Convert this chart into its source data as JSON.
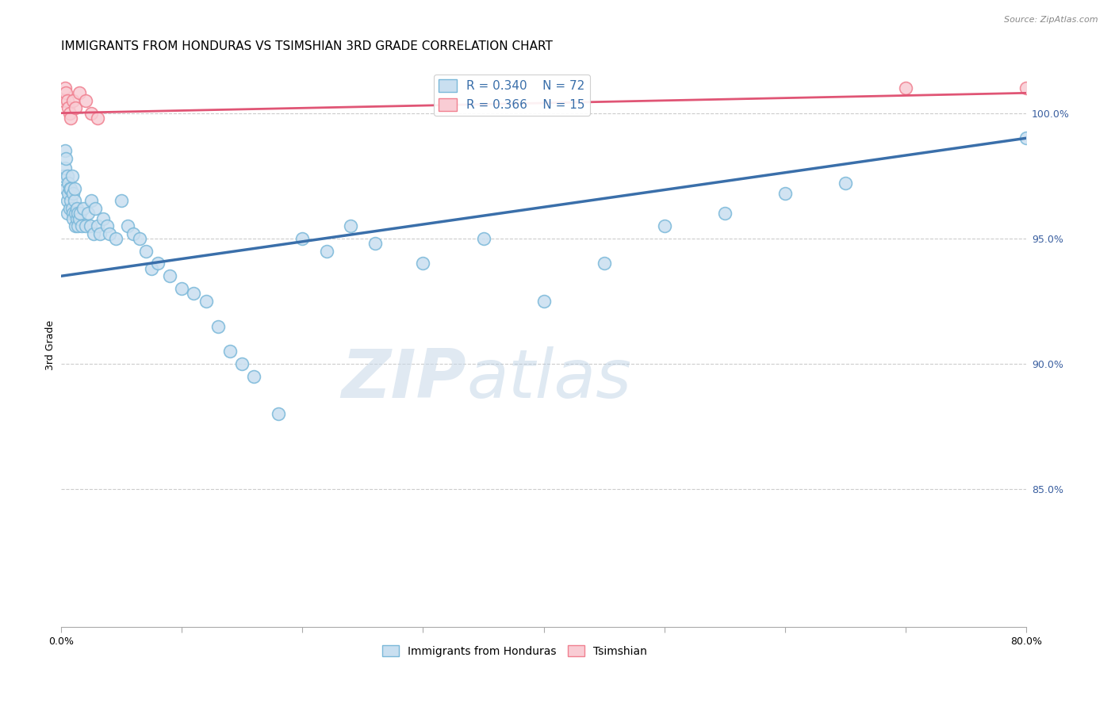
{
  "title": "IMMIGRANTS FROM HONDURAS VS TSIMSHIAN 3RD GRADE CORRELATION CHART",
  "source": "Source: ZipAtlas.com",
  "ylabel": "3rd Grade",
  "xlim": [
    0.0,
    80.0
  ],
  "ylim": [
    79.5,
    102.0
  ],
  "blue_R": 0.34,
  "blue_N": 72,
  "pink_R": 0.366,
  "pink_N": 15,
  "blue_color": "#7ab8d9",
  "blue_fill": "#c9dff0",
  "pink_color": "#f08090",
  "pink_fill": "#f9ccd4",
  "blue_line_color": "#3a6faa",
  "pink_line_color": "#e05575",
  "legend_label_blue": "Immigrants from Honduras",
  "legend_label_pink": "Tsimshian",
  "blue_scatter_x": [
    0.2,
    0.3,
    0.3,
    0.4,
    0.4,
    0.5,
    0.5,
    0.5,
    0.6,
    0.6,
    0.7,
    0.7,
    0.8,
    0.8,
    0.9,
    0.9,
    1.0,
    1.0,
    1.0,
    1.1,
    1.1,
    1.2,
    1.2,
    1.3,
    1.3,
    1.4,
    1.4,
    1.5,
    1.6,
    1.7,
    1.8,
    2.0,
    2.2,
    2.4,
    2.5,
    2.7,
    2.8,
    3.0,
    3.2,
    3.5,
    3.8,
    4.0,
    4.5,
    5.0,
    5.5,
    6.0,
    6.5,
    7.0,
    7.5,
    8.0,
    9.0,
    10.0,
    11.0,
    12.0,
    13.0,
    14.0,
    15.0,
    16.0,
    18.0,
    20.0,
    22.0,
    24.0,
    26.0,
    30.0,
    35.0,
    40.0,
    45.0,
    50.0,
    55.0,
    60.0,
    65.0,
    80.0
  ],
  "blue_scatter_y": [
    97.5,
    97.8,
    98.5,
    98.2,
    97.0,
    96.5,
    97.5,
    96.0,
    97.2,
    96.8,
    97.0,
    96.2,
    96.5,
    97.0,
    96.2,
    97.5,
    96.0,
    96.8,
    95.8,
    96.5,
    97.0,
    96.0,
    95.5,
    96.2,
    95.8,
    96.0,
    95.5,
    95.8,
    96.0,
    95.5,
    96.2,
    95.5,
    96.0,
    95.5,
    96.5,
    95.2,
    96.2,
    95.5,
    95.2,
    95.8,
    95.5,
    95.2,
    95.0,
    96.5,
    95.5,
    95.2,
    95.0,
    94.5,
    93.8,
    94.0,
    93.5,
    93.0,
    92.8,
    92.5,
    91.5,
    90.5,
    90.0,
    89.5,
    88.0,
    95.0,
    94.5,
    95.5,
    94.8,
    94.0,
    95.0,
    92.5,
    94.0,
    95.5,
    96.0,
    96.8,
    97.2,
    99.0
  ],
  "pink_scatter_x": [
    0.2,
    0.3,
    0.4,
    0.5,
    0.6,
    0.7,
    0.8,
    1.0,
    1.2,
    1.5,
    2.0,
    2.5,
    3.0,
    70.0,
    80.0
  ],
  "pink_scatter_y": [
    100.5,
    101.0,
    100.8,
    100.5,
    100.2,
    100.0,
    99.8,
    100.5,
    100.2,
    100.8,
    100.5,
    100.0,
    99.8,
    101.0,
    101.0
  ],
  "blue_trend_x0": 0.0,
  "blue_trend_x1": 80.0,
  "blue_trend_y0": 93.5,
  "blue_trend_y1": 99.0,
  "pink_trend_y0": 100.0,
  "pink_trend_y1": 100.8,
  "watermark_zip": "ZIP",
  "watermark_atlas": "atlas",
  "title_fontsize": 11,
  "axis_label_fontsize": 9,
  "tick_fontsize": 9,
  "legend_fontsize": 11
}
